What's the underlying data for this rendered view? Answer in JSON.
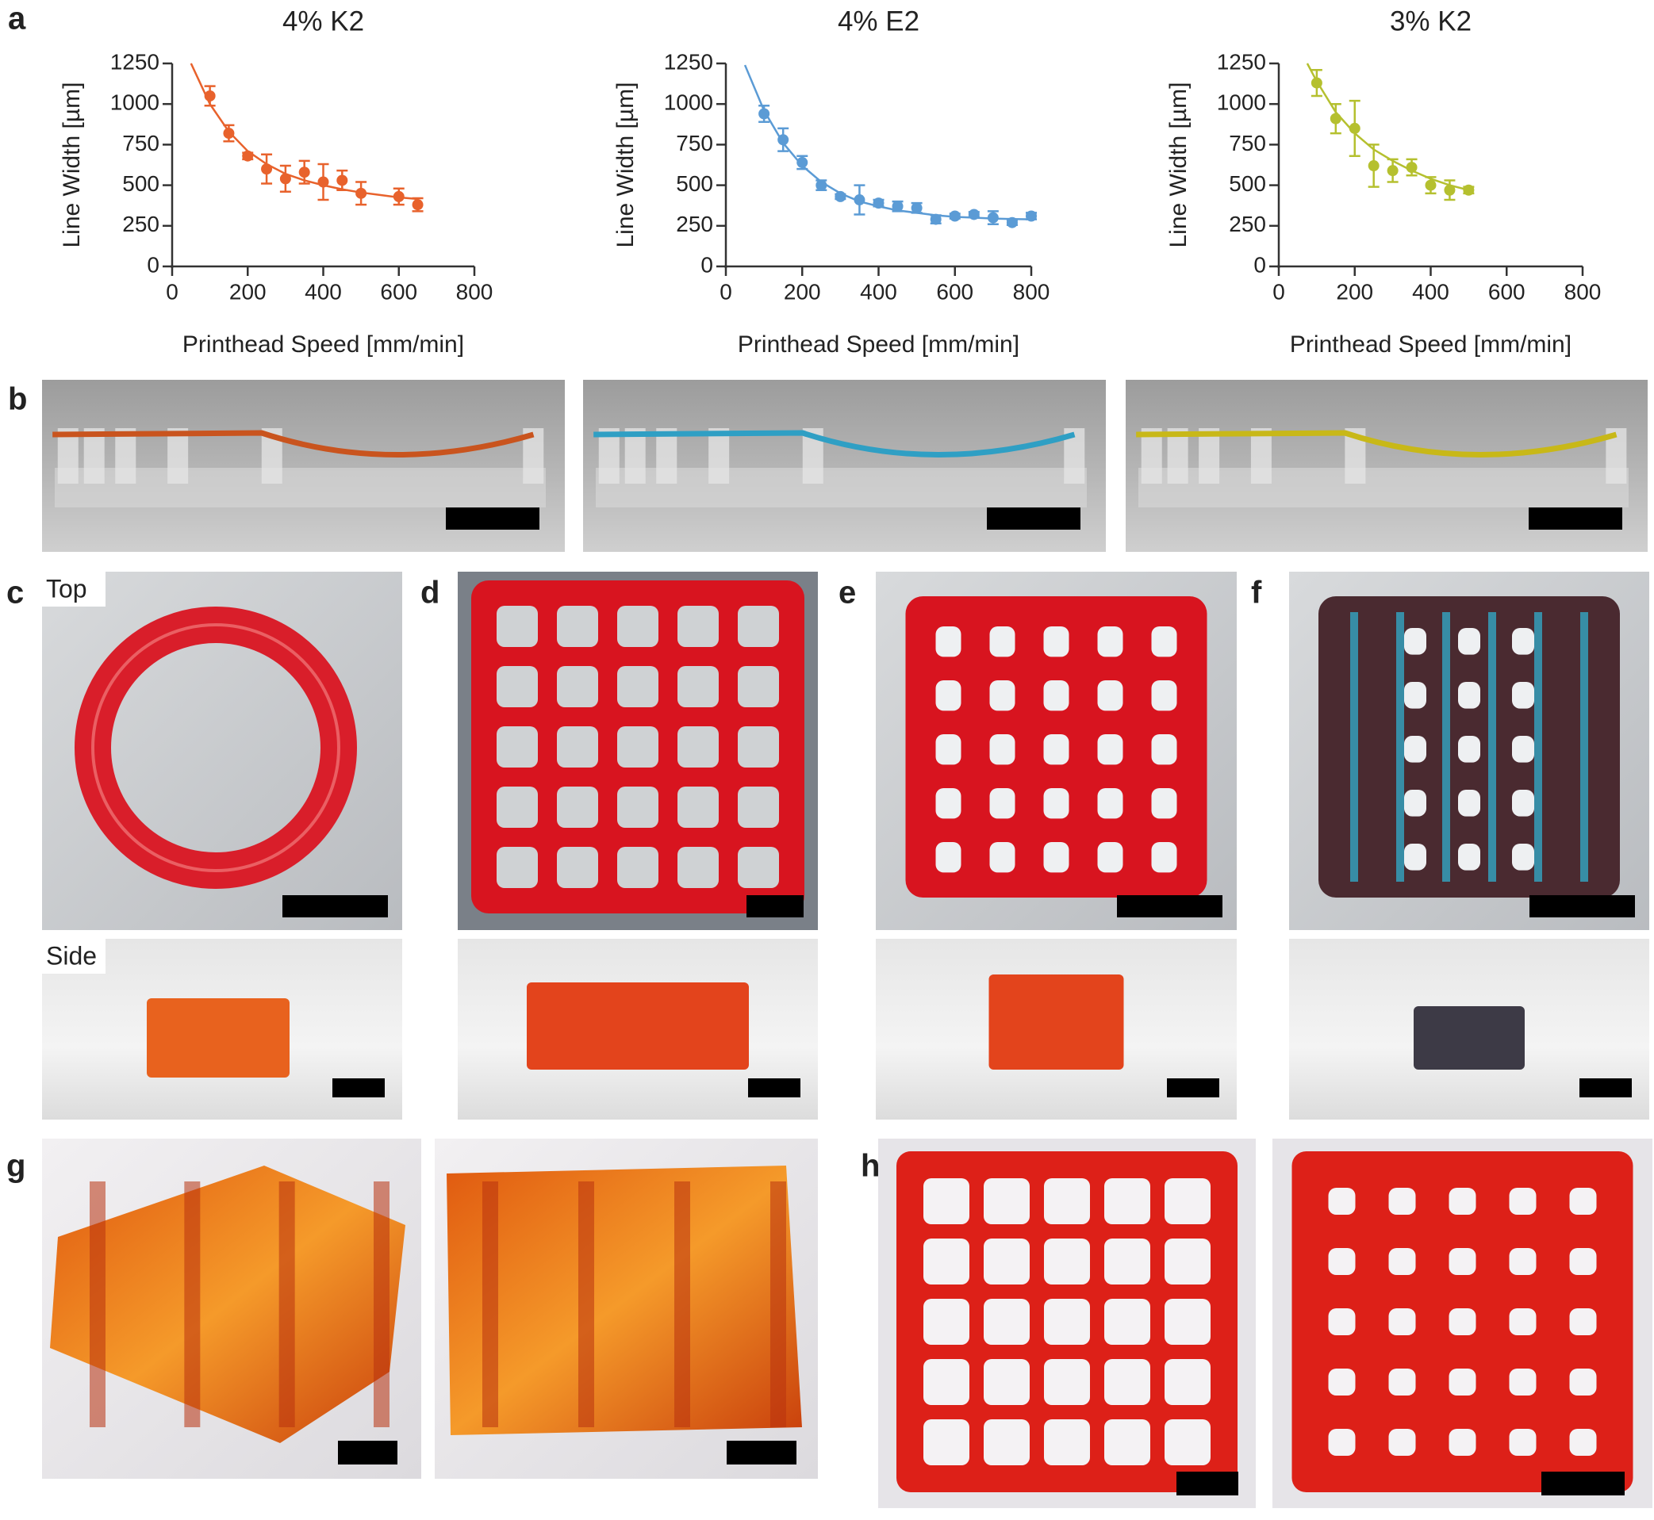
{
  "chart_data": [
    {
      "type": "scatter",
      "title": "4% K2",
      "xlabel": "Printhead Speed [mm/min]",
      "ylabel": "Line Width [µm]",
      "color": "#e8622c",
      "x": [
        100,
        150,
        200,
        250,
        300,
        350,
        400,
        450,
        500,
        600,
        650
      ],
      "values": [
        1050,
        820,
        680,
        600,
        540,
        580,
        520,
        530,
        450,
        430,
        380
      ],
      "errors": [
        60,
        50,
        20,
        90,
        80,
        70,
        110,
        60,
        70,
        50,
        40
      ],
      "fit": {
        "x": [
          50,
          100,
          150,
          200,
          250,
          300,
          350,
          400,
          450,
          500,
          550,
          600,
          650
        ],
        "values": [
          1250,
          1000,
          830,
          710,
          630,
          570,
          530,
          500,
          475,
          455,
          440,
          425,
          415
        ]
      },
      "xlim": [
        0,
        800
      ],
      "ylim": [
        0,
        1250
      ],
      "xticks": [
        0,
        200,
        400,
        600,
        800
      ],
      "yticks": [
        0,
        250,
        500,
        750,
        1000,
        1250
      ]
    },
    {
      "type": "scatter",
      "title": "4% E2",
      "xlabel": "Printhead Speed [mm/min]",
      "ylabel": "Line Width [µm]",
      "color": "#5b9bd5",
      "x": [
        100,
        150,
        200,
        250,
        300,
        350,
        400,
        450,
        500,
        550,
        600,
        650,
        700,
        750,
        800
      ],
      "values": [
        940,
        780,
        640,
        500,
        430,
        410,
        390,
        370,
        360,
        290,
        310,
        320,
        300,
        270,
        310
      ],
      "errors": [
        50,
        70,
        40,
        30,
        15,
        90,
        20,
        30,
        30,
        25,
        15,
        15,
        40,
        15,
        20
      ],
      "fit": {
        "x": [
          50,
          100,
          150,
          200,
          250,
          300,
          350,
          400,
          450,
          500,
          550,
          600,
          650,
          700,
          750,
          800
        ],
        "values": [
          1240,
          960,
          760,
          620,
          520,
          450,
          400,
          370,
          345,
          330,
          315,
          305,
          300,
          295,
          292,
          290
        ]
      },
      "xlim": [
        0,
        800
      ],
      "ylim": [
        0,
        1250
      ],
      "xticks": [
        0,
        200,
        400,
        600,
        800
      ],
      "yticks": [
        0,
        250,
        500,
        750,
        1000,
        1250
      ]
    },
    {
      "type": "scatter",
      "title": "3% K2",
      "xlabel": "Printhead Speed [mm/min]",
      "ylabel": "Line Width [µm]",
      "color": "#b5c02f",
      "x": [
        100,
        150,
        200,
        250,
        300,
        350,
        400,
        450,
        500
      ],
      "values": [
        1130,
        910,
        850,
        620,
        590,
        610,
        500,
        470,
        470
      ],
      "errors": [
        80,
        90,
        170,
        130,
        70,
        50,
        50,
        60,
        20
      ],
      "fit": {
        "x": [
          75,
          100,
          150,
          200,
          250,
          300,
          350,
          400,
          450,
          500
        ],
        "values": [
          1250,
          1140,
          950,
          820,
          720,
          650,
          590,
          540,
          500,
          470
        ]
      },
      "xlim": [
        0,
        800
      ],
      "ylim": [
        0,
        1250
      ],
      "xticks": [
        0,
        200,
        400,
        600,
        800
      ],
      "yticks": [
        0,
        250,
        500,
        750,
        1000,
        1250
      ]
    }
  ],
  "panel_labels": [
    "a",
    "b",
    "c",
    "d",
    "e",
    "f",
    "g",
    "h"
  ],
  "photo_labels": [
    "Top",
    "Side"
  ]
}
